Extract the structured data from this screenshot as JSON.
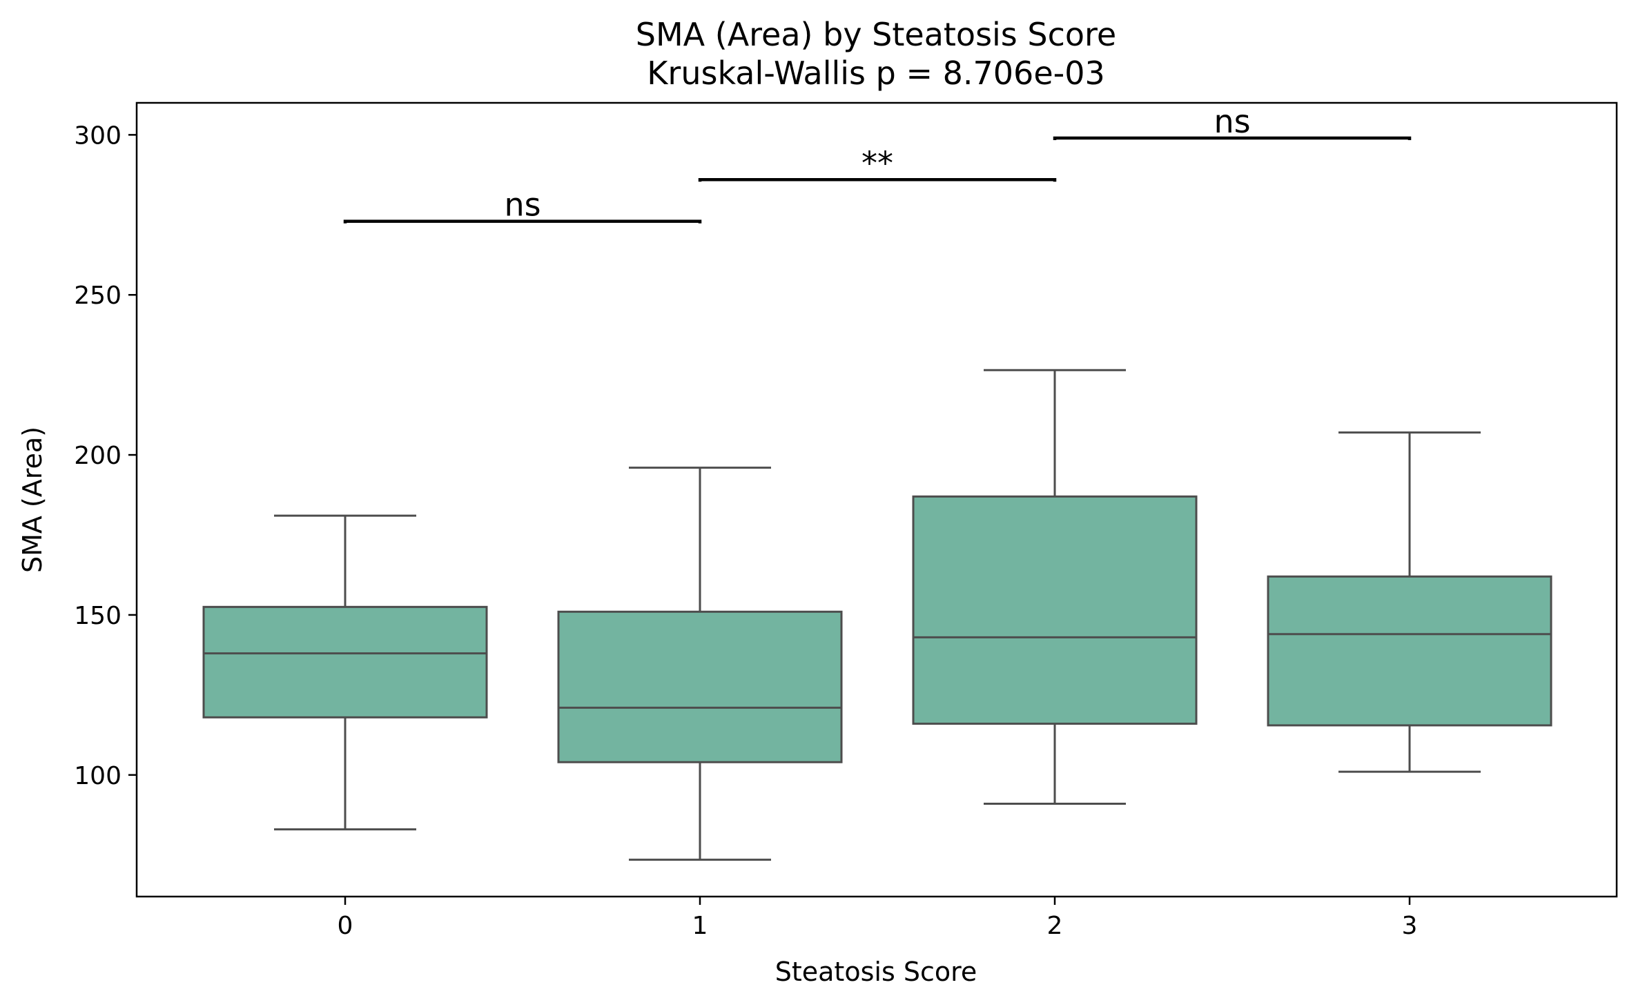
{
  "chart_data": {
    "type": "box",
    "title": "SMA (Area) by Steatosis Score",
    "subtitle": "Kruskal-Wallis p = 8.706e-03",
    "xlabel": "Steatosis Score",
    "ylabel": "SMA (Area)",
    "ylim": [
      62,
      310
    ],
    "y_ticks": [
      100,
      150,
      200,
      250,
      300
    ],
    "categories": [
      "0",
      "1",
      "2",
      "3"
    ],
    "box_color": "#73b4a0",
    "line_color": "#4d4d4d",
    "boxes": [
      {
        "category": "0",
        "whisker_low": 83,
        "q1": 118,
        "median": 138,
        "q3": 152.5,
        "whisker_high": 181
      },
      {
        "category": "1",
        "whisker_low": 73.5,
        "q1": 104,
        "median": 121,
        "q3": 151,
        "whisker_high": 196
      },
      {
        "category": "2",
        "whisker_low": 91,
        "q1": 116,
        "median": 143,
        "q3": 187,
        "whisker_high": 226.5
      },
      {
        "category": "3",
        "whisker_low": 101,
        "q1": 115.5,
        "median": 144,
        "q3": 162,
        "whisker_high": 207
      }
    ],
    "comparisons": [
      {
        "from": "0",
        "to": "1",
        "y": 273,
        "label": "ns"
      },
      {
        "from": "1",
        "to": "2",
        "y": 286,
        "label": "**"
      },
      {
        "from": "2",
        "to": "3",
        "y": 299,
        "label": "ns"
      }
    ],
    "grid": false,
    "legend": "none"
  }
}
